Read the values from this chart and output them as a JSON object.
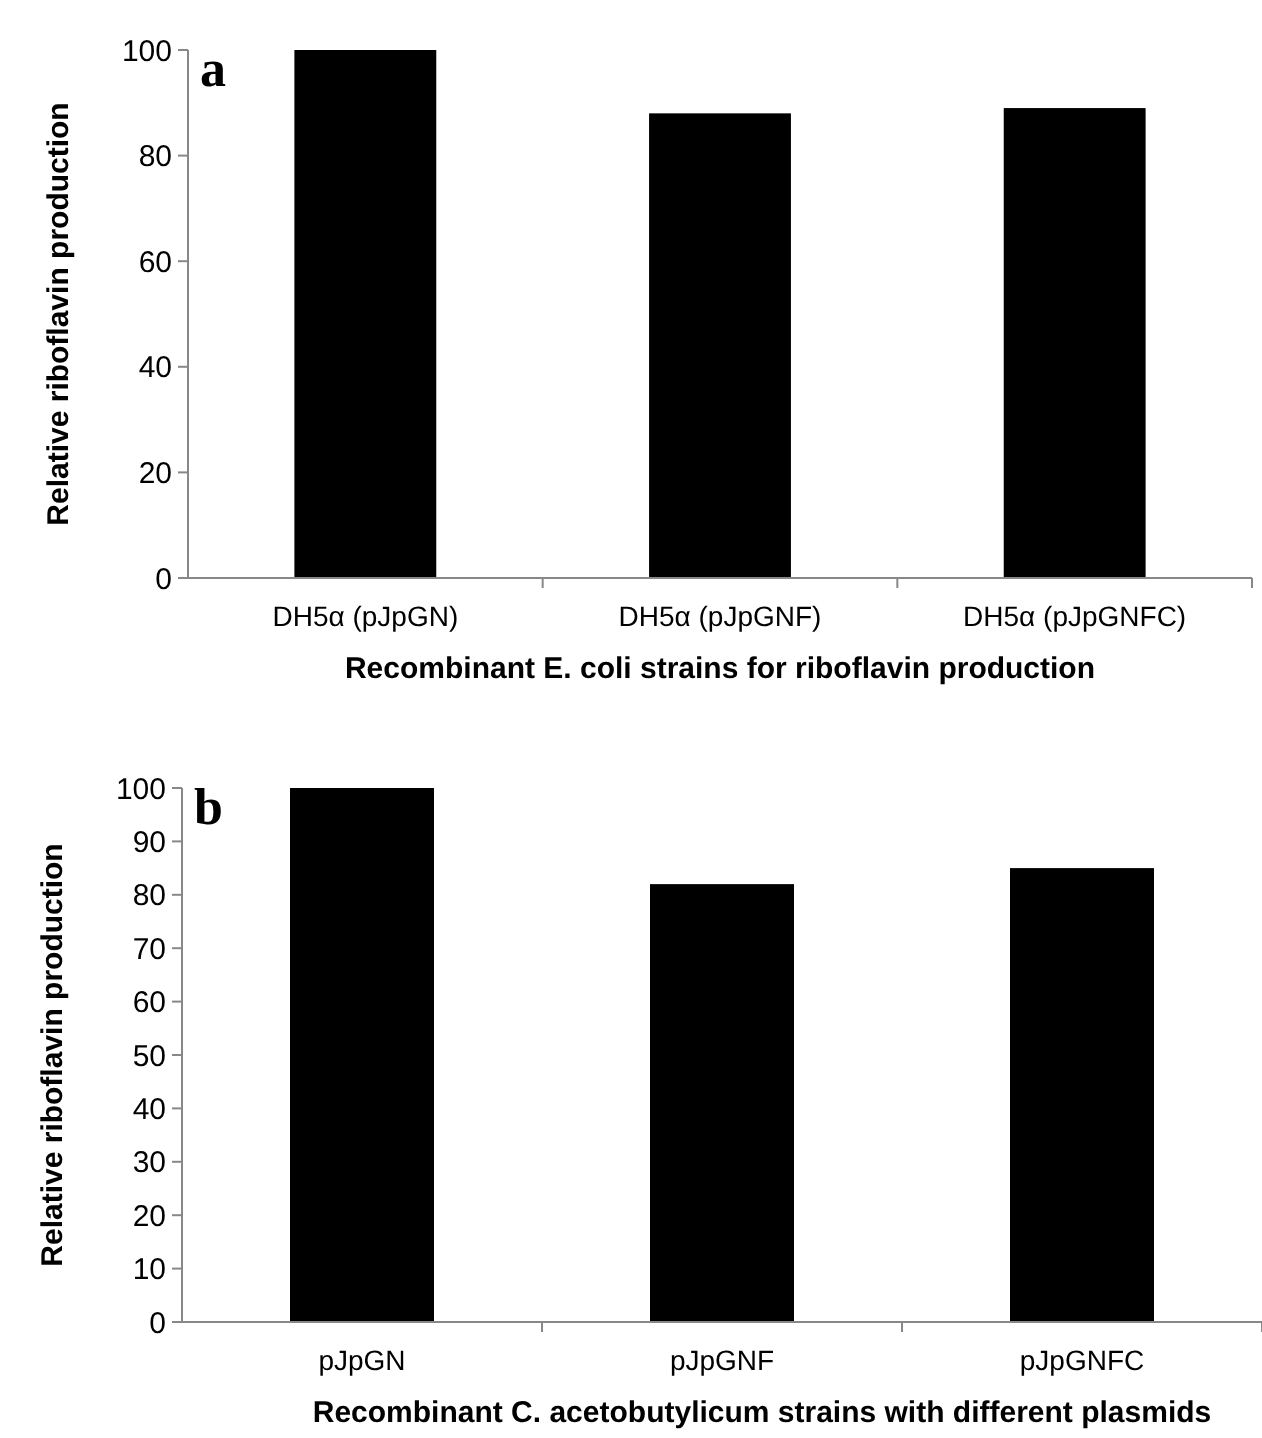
{
  "chart_data": [
    {
      "type": "bar",
      "title": "a",
      "categories": [
        "DH5α (pJpGN)",
        "DH5α (pJpGNF)",
        "DH5α (pJpGNFC)"
      ],
      "values": [
        100,
        88,
        89
      ],
      "color": "#000000",
      "ylim": [
        0,
        100
      ],
      "yticks": [
        0,
        20,
        40,
        60,
        80,
        100
      ],
      "xlabel": "Recombinant E. coli strains for riboflavin production",
      "ylabel": "Relative riboflavin production"
    },
    {
      "type": "bar",
      "title": "b",
      "categories": [
        "pJpGN",
        "pJpGNF",
        "pJpGNFC"
      ],
      "values": [
        100,
        82,
        85
      ],
      "color": "#000000",
      "ylim": [
        0,
        100
      ],
      "yticks": [
        0,
        10,
        20,
        30,
        40,
        50,
        60,
        70,
        80,
        90,
        100
      ],
      "xlabel": "Recombinant C. acetobutylicum strains with different plasmids",
      "ylabel": "Relative riboflavin production"
    }
  ]
}
